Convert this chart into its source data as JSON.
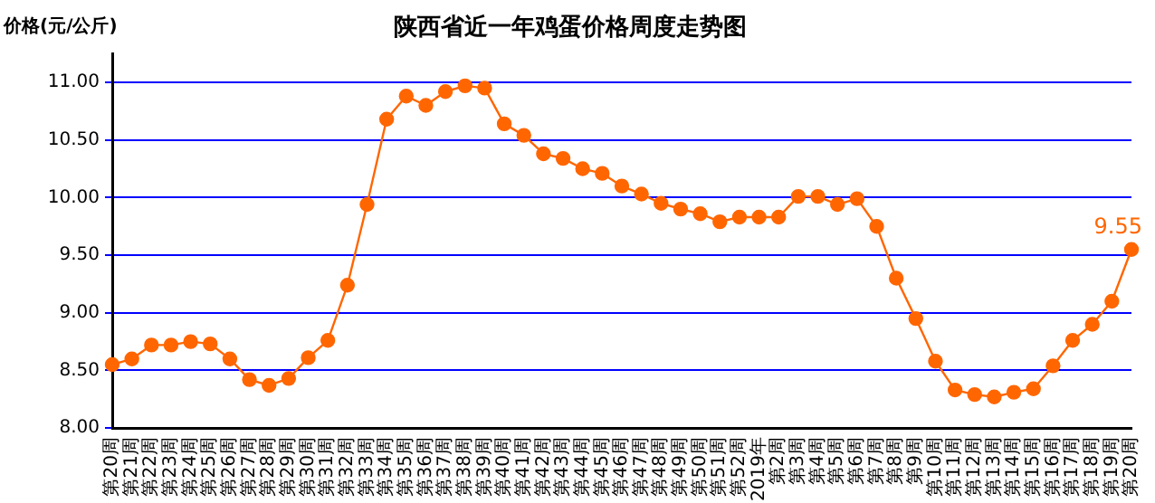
{
  "chart_data": {
    "type": "line",
    "title": "陕西省近一年鸡蛋价格周度走势图",
    "ylabel": "价格(元/公斤)",
    "categories": [
      "第20周",
      "第21周",
      "第22周",
      "第23周",
      "第24周",
      "第25周",
      "第26周",
      "第27周",
      "第28周",
      "第29周",
      "第30周",
      "第31周",
      "第32周",
      "第33周",
      "第34周",
      "第35周",
      "第36周",
      "第37周",
      "第38周",
      "第39周",
      "第40周",
      "第41周",
      "第42周",
      "第43周",
      "第44周",
      "第45周",
      "第46周",
      "第47周",
      "第48周",
      "第49周",
      "第50周",
      "第51周",
      "第52周",
      "2019年",
      "第2周",
      "第3周",
      "第4周",
      "第5周",
      "第6周",
      "第7周",
      "第8周",
      "第9周",
      "第10周",
      "第11周",
      "第12周",
      "第13周",
      "第14周",
      "第15周",
      "第16周",
      "第17周",
      "第18周",
      "第19周",
      "第20周"
    ],
    "series": [
      {
        "color": "#ff6600",
        "values": [
          8.55,
          8.6,
          8.72,
          8.72,
          8.75,
          8.73,
          8.6,
          8.42,
          8.37,
          8.43,
          8.61,
          8.76,
          9.24,
          9.94,
          10.68,
          10.88,
          10.8,
          10.92,
          10.97,
          10.95,
          10.64,
          10.54,
          10.38,
          10.34,
          10.25,
          10.21,
          10.1,
          10.03,
          9.95,
          9.9,
          9.86,
          9.79,
          9.83,
          9.83,
          9.83,
          10.01,
          10.01,
          9.94,
          9.99,
          9.75,
          9.3,
          8.95,
          8.58,
          8.33,
          8.29,
          8.27,
          8.31,
          8.34,
          8.54,
          8.76,
          8.9,
          9.1,
          9.55
        ],
        "value_labels": [
          null,
          null,
          null,
          null,
          null,
          null,
          null,
          null,
          null,
          null,
          null,
          null,
          null,
          null,
          null,
          null,
          null,
          null,
          null,
          null,
          null,
          null,
          null,
          null,
          null,
          null,
          null,
          null,
          null,
          null,
          null,
          null,
          null,
          null,
          null,
          null,
          null,
          null,
          null,
          null,
          null,
          null,
          null,
          null,
          null,
          null,
          null,
          null,
          null,
          null,
          null,
          null,
          "9.55"
        ]
      }
    ],
    "ylim": [
      8,
      11.25
    ],
    "yticks": [
      {
        "value": 8,
        "label": "8.00"
      },
      {
        "value": 8.5,
        "label": "8.50"
      },
      {
        "value": 9,
        "label": "9.00"
      },
      {
        "value": 9.5,
        "label": "9.50"
      },
      {
        "value": 10,
        "label": "10.00"
      },
      {
        "value": 10.5,
        "label": "10.50"
      },
      {
        "value": 11,
        "label": "11.00"
      }
    ],
    "grid": "y",
    "legend": false,
    "marker": "circle",
    "line_style": "solid"
  }
}
